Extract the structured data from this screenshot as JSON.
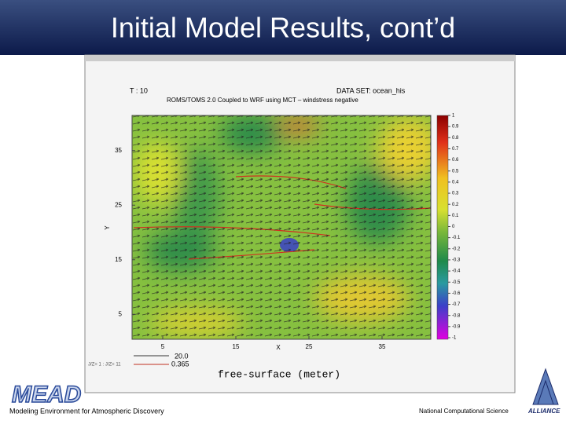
{
  "slide": {
    "title": "Initial Model Results, cont’d",
    "footer_left": "Modeling Environment for Atmospheric Discovery",
    "footer_right": "National Computational Science",
    "logo_left": "MEAD",
    "logo_right": "ALLIANCE"
  },
  "plot": {
    "time_label": "T : 10",
    "dataset": "DATA SET: ocean_his",
    "subtitle": "ROMS/TOMS 2.0 Coupled to WRF using MCT – windstress negative",
    "x_label": "X",
    "y_label": "Y",
    "x_ticks": [
      5,
      15,
      25,
      35
    ],
    "y_ticks": [
      5,
      15,
      25,
      35
    ],
    "colorbar_ticks": [
      1,
      0.9,
      0.8,
      0.7,
      0.6,
      0.5,
      0.4,
      0.3,
      0.2,
      0.1,
      0,
      -0.1,
      -0.2,
      -0.3,
      -0.4,
      -0.5,
      -0.6,
      -0.7,
      -0.8,
      -0.9,
      -1
    ],
    "variable": "free-surface (meter)",
    "vector_scale": "20.0",
    "vector_magnitude": "0.365",
    "slice": "J/Z= 1 : J/Z= 11"
  }
}
